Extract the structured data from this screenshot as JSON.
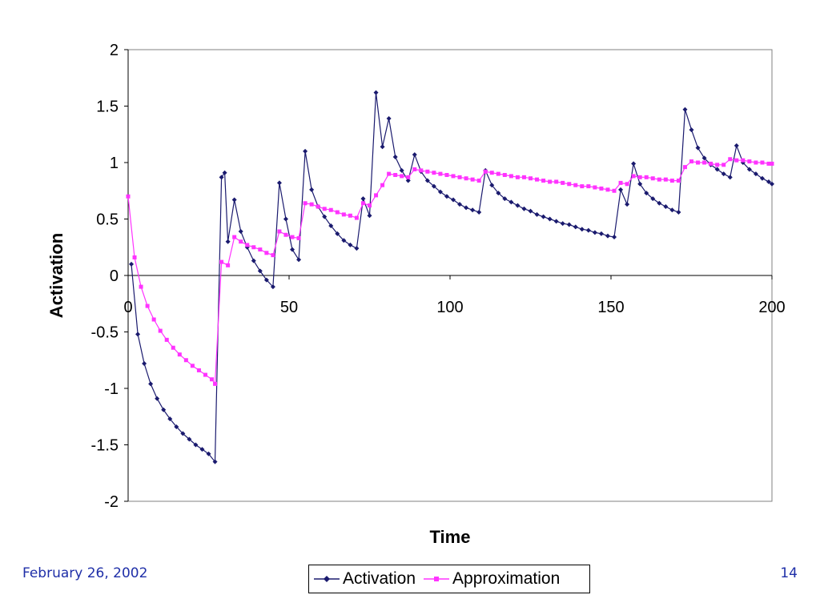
{
  "chart_data": {
    "type": "line",
    "title": "",
    "xlabel": "Time",
    "ylabel": "Activation",
    "xlim": [
      0,
      200
    ],
    "ylim": [
      -2,
      2
    ],
    "xticks": [
      "0",
      "50",
      "100",
      "150",
      "200"
    ],
    "yticks": [
      "2",
      "1.5",
      "1",
      "0.5",
      "0",
      "-0.5",
      "-1",
      "-1.5",
      "-2"
    ],
    "grid": false,
    "legend_position": "bottom",
    "series": [
      {
        "name": "Activation",
        "color": "#1a1a6e",
        "marker": "diamond",
        "points": [
          [
            1,
            0.1
          ],
          [
            3,
            -0.52
          ],
          [
            5,
            -0.78
          ],
          [
            7,
            -0.96
          ],
          [
            9,
            -1.09
          ],
          [
            11,
            -1.19
          ],
          [
            13,
            -1.27
          ],
          [
            15,
            -1.34
          ],
          [
            17,
            -1.4
          ],
          [
            19,
            -1.45
          ],
          [
            21,
            -1.5
          ],
          [
            23,
            -1.54
          ],
          [
            25,
            -1.58
          ],
          [
            27,
            -1.65
          ],
          [
            29,
            0.87
          ],
          [
            30,
            0.91
          ],
          [
            31,
            0.3
          ],
          [
            33,
            0.67
          ],
          [
            35,
            0.39
          ],
          [
            37,
            0.25
          ],
          [
            39,
            0.13
          ],
          [
            41,
            0.04
          ],
          [
            43,
            -0.04
          ],
          [
            45,
            -0.1
          ],
          [
            47,
            0.82
          ],
          [
            49,
            0.5
          ],
          [
            51,
            0.23
          ],
          [
            53,
            0.14
          ],
          [
            55,
            1.1
          ],
          [
            57,
            0.76
          ],
          [
            59,
            0.61
          ],
          [
            61,
            0.52
          ],
          [
            63,
            0.44
          ],
          [
            65,
            0.37
          ],
          [
            67,
            0.31
          ],
          [
            69,
            0.27
          ],
          [
            71,
            0.24
          ],
          [
            73,
            0.68
          ],
          [
            75,
            0.53
          ],
          [
            77,
            1.62
          ],
          [
            79,
            1.14
          ],
          [
            81,
            1.39
          ],
          [
            83,
            1.05
          ],
          [
            85,
            0.93
          ],
          [
            87,
            0.84
          ],
          [
            89,
            1.07
          ],
          [
            91,
            0.92
          ],
          [
            93,
            0.84
          ],
          [
            95,
            0.79
          ],
          [
            97,
            0.74
          ],
          [
            99,
            0.7
          ],
          [
            101,
            0.67
          ],
          [
            103,
            0.63
          ],
          [
            105,
            0.6
          ],
          [
            107,
            0.58
          ],
          [
            109,
            0.56
          ],
          [
            111,
            0.93
          ],
          [
            113,
            0.8
          ],
          [
            115,
            0.73
          ],
          [
            117,
            0.68
          ],
          [
            119,
            0.65
          ],
          [
            121,
            0.62
          ],
          [
            123,
            0.59
          ],
          [
            125,
            0.57
          ],
          [
            127,
            0.54
          ],
          [
            129,
            0.52
          ],
          [
            131,
            0.5
          ],
          [
            133,
            0.48
          ],
          [
            135,
            0.46
          ],
          [
            137,
            0.45
          ],
          [
            139,
            0.43
          ],
          [
            141,
            0.41
          ],
          [
            143,
            0.4
          ],
          [
            145,
            0.38
          ],
          [
            147,
            0.37
          ],
          [
            149,
            0.35
          ],
          [
            151,
            0.34
          ],
          [
            153,
            0.76
          ],
          [
            155,
            0.63
          ],
          [
            157,
            0.99
          ],
          [
            159,
            0.81
          ],
          [
            161,
            0.73
          ],
          [
            163,
            0.68
          ],
          [
            165,
            0.64
          ],
          [
            167,
            0.61
          ],
          [
            169,
            0.58
          ],
          [
            171,
            0.56
          ],
          [
            173,
            1.47
          ],
          [
            175,
            1.29
          ],
          [
            177,
            1.13
          ],
          [
            179,
            1.04
          ],
          [
            181,
            0.98
          ],
          [
            183,
            0.94
          ],
          [
            185,
            0.9
          ],
          [
            187,
            0.87
          ],
          [
            189,
            1.15
          ],
          [
            191,
            1.0
          ],
          [
            193,
            0.94
          ],
          [
            195,
            0.9
          ],
          [
            197,
            0.86
          ],
          [
            199,
            0.83
          ],
          [
            200,
            0.81
          ]
        ]
      },
      {
        "name": "Approximation",
        "color": "#ff33ff",
        "marker": "square",
        "points": [
          [
            0,
            0.7
          ],
          [
            2,
            0.16
          ],
          [
            4,
            -0.1
          ],
          [
            6,
            -0.27
          ],
          [
            8,
            -0.39
          ],
          [
            10,
            -0.49
          ],
          [
            12,
            -0.57
          ],
          [
            14,
            -0.64
          ],
          [
            16,
            -0.7
          ],
          [
            18,
            -0.75
          ],
          [
            20,
            -0.8
          ],
          [
            22,
            -0.84
          ],
          [
            24,
            -0.88
          ],
          [
            26,
            -0.92
          ],
          [
            27,
            -0.96
          ],
          [
            29,
            0.12
          ],
          [
            31,
            0.09
          ],
          [
            33,
            0.34
          ],
          [
            35,
            0.3
          ],
          [
            37,
            0.27
          ],
          [
            39,
            0.25
          ],
          [
            41,
            0.23
          ],
          [
            43,
            0.2
          ],
          [
            45,
            0.18
          ],
          [
            47,
            0.39
          ],
          [
            49,
            0.36
          ],
          [
            51,
            0.34
          ],
          [
            53,
            0.33
          ],
          [
            55,
            0.64
          ],
          [
            57,
            0.63
          ],
          [
            59,
            0.61
          ],
          [
            61,
            0.59
          ],
          [
            63,
            0.58
          ],
          [
            65,
            0.56
          ],
          [
            67,
            0.54
          ],
          [
            69,
            0.53
          ],
          [
            71,
            0.51
          ],
          [
            73,
            0.64
          ],
          [
            75,
            0.62
          ],
          [
            77,
            0.71
          ],
          [
            79,
            0.8
          ],
          [
            81,
            0.9
          ],
          [
            83,
            0.89
          ],
          [
            85,
            0.88
          ],
          [
            87,
            0.87
          ],
          [
            89,
            0.94
          ],
          [
            91,
            0.93
          ],
          [
            93,
            0.92
          ],
          [
            95,
            0.91
          ],
          [
            97,
            0.9
          ],
          [
            99,
            0.89
          ],
          [
            101,
            0.88
          ],
          [
            103,
            0.87
          ],
          [
            105,
            0.86
          ],
          [
            107,
            0.85
          ],
          [
            109,
            0.84
          ],
          [
            111,
            0.92
          ],
          [
            113,
            0.91
          ],
          [
            115,
            0.9
          ],
          [
            117,
            0.89
          ],
          [
            119,
            0.88
          ],
          [
            121,
            0.87
          ],
          [
            123,
            0.87
          ],
          [
            125,
            0.86
          ],
          [
            127,
            0.85
          ],
          [
            129,
            0.84
          ],
          [
            131,
            0.83
          ],
          [
            133,
            0.83
          ],
          [
            135,
            0.82
          ],
          [
            137,
            0.81
          ],
          [
            139,
            0.8
          ],
          [
            141,
            0.79
          ],
          [
            143,
            0.79
          ],
          [
            145,
            0.78
          ],
          [
            147,
            0.77
          ],
          [
            149,
            0.76
          ],
          [
            151,
            0.75
          ],
          [
            153,
            0.82
          ],
          [
            155,
            0.81
          ],
          [
            157,
            0.88
          ],
          [
            159,
            0.87
          ],
          [
            161,
            0.87
          ],
          [
            163,
            0.86
          ],
          [
            165,
            0.85
          ],
          [
            167,
            0.85
          ],
          [
            169,
            0.84
          ],
          [
            171,
            0.84
          ],
          [
            173,
            0.96
          ],
          [
            175,
            1.01
          ],
          [
            177,
            1.0
          ],
          [
            179,
            1.0
          ],
          [
            181,
            0.99
          ],
          [
            183,
            0.98
          ],
          [
            185,
            0.98
          ],
          [
            187,
            1.03
          ],
          [
            189,
            1.02
          ],
          [
            191,
            1.02
          ],
          [
            193,
            1.01
          ],
          [
            195,
            1.0
          ],
          [
            197,
            1.0
          ],
          [
            199,
            0.99
          ],
          [
            200,
            0.99
          ]
        ]
      }
    ]
  },
  "footer": {
    "date": "February 26, 2002",
    "page": "14"
  },
  "legend": {
    "items": [
      "Activation",
      "Approximation"
    ]
  }
}
